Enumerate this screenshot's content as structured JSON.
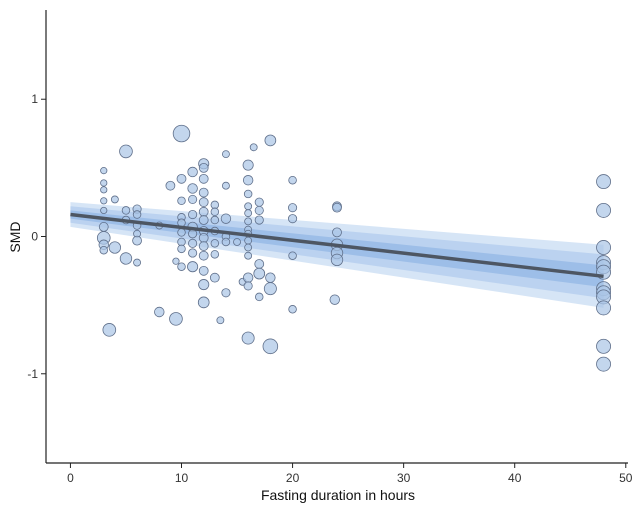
{
  "chart_data": {
    "type": "scatter",
    "xlabel": "Fasting duration in hours",
    "ylabel": "SMD",
    "xlim": [
      -2.2,
      50.2
    ],
    "ylim": [
      -1.65,
      1.65
    ],
    "x_ticks": [
      0,
      10,
      20,
      30,
      40,
      50
    ],
    "y_ticks": [
      -1,
      0,
      1
    ],
    "x_tick_labels": [
      "0",
      "10",
      "20",
      "30",
      "40",
      "50"
    ],
    "y_tick_labels": [
      "-1",
      "0",
      "1"
    ],
    "grid": false,
    "legend": "none",
    "colors": {
      "point_fill": "#a9c4e6",
      "point_stroke": "#5f6f8a",
      "band_outer": "#cfe0f4",
      "band_mid": "#b6cfee",
      "band_inner": "#98bbe6",
      "line": "#4d5663",
      "axis": "#222222"
    },
    "regression": {
      "x": [
        0,
        48
      ],
      "y": [
        0.16,
        -0.29
      ],
      "bands": [
        {
          "level": "outer",
          "lower": [
            0.07,
            -0.52
          ],
          "upper": [
            0.25,
            -0.06
          ]
        },
        {
          "level": "mid",
          "lower": [
            0.1,
            -0.45
          ],
          "upper": [
            0.22,
            -0.13
          ]
        },
        {
          "level": "inner",
          "lower": [
            0.13,
            -0.37
          ],
          "upper": [
            0.19,
            -0.21
          ]
        }
      ]
    },
    "points": [
      {
        "x": 3,
        "y": 0.48,
        "w": 1
      },
      {
        "x": 3,
        "y": 0.39,
        "w": 1
      },
      {
        "x": 3,
        "y": 0.34,
        "w": 1
      },
      {
        "x": 3,
        "y": 0.26,
        "w": 1
      },
      {
        "x": 3,
        "y": 0.19,
        "w": 1
      },
      {
        "x": 3,
        "y": 0.07,
        "w": 1.4
      },
      {
        "x": 3,
        "y": -0.01,
        "w": 2
      },
      {
        "x": 3,
        "y": -0.06,
        "w": 1.5
      },
      {
        "x": 3,
        "y": -0.1,
        "w": 1.2
      },
      {
        "x": 3.5,
        "y": -0.68,
        "w": 2
      },
      {
        "x": 4,
        "y": -0.08,
        "w": 1.8
      },
      {
        "x": 4,
        "y": 0.27,
        "w": 1.1
      },
      {
        "x": 5,
        "y": 0.62,
        "w": 2
      },
      {
        "x": 5,
        "y": 0.19,
        "w": 1.2
      },
      {
        "x": 5,
        "y": 0.12,
        "w": 1.2
      },
      {
        "x": 5,
        "y": -0.16,
        "w": 1.8
      },
      {
        "x": 6,
        "y": 0.2,
        "w": 1.3
      },
      {
        "x": 6,
        "y": 0.16,
        "w": 1.2
      },
      {
        "x": 6,
        "y": 0.08,
        "w": 1.2
      },
      {
        "x": 6,
        "y": 0.02,
        "w": 1.1
      },
      {
        "x": 6,
        "y": -0.03,
        "w": 1.4
      },
      {
        "x": 6,
        "y": -0.19,
        "w": 1.1
      },
      {
        "x": 8,
        "y": -0.55,
        "w": 1.5
      },
      {
        "x": 8,
        "y": 0.08,
        "w": 1.1
      },
      {
        "x": 9,
        "y": 0.37,
        "w": 1.4
      },
      {
        "x": 9.5,
        "y": -0.6,
        "w": 2
      },
      {
        "x": 9.5,
        "y": -0.18,
        "w": 1
      },
      {
        "x": 10,
        "y": 0.75,
        "w": 2.6
      },
      {
        "x": 10,
        "y": 0.42,
        "w": 1.4
      },
      {
        "x": 10,
        "y": 0.26,
        "w": 1.2
      },
      {
        "x": 10,
        "y": 0.14,
        "w": 1.2
      },
      {
        "x": 10,
        "y": 0.1,
        "w": 1.2
      },
      {
        "x": 10,
        "y": 0.03,
        "w": 1.2
      },
      {
        "x": 10,
        "y": -0.04,
        "w": 1.2
      },
      {
        "x": 10,
        "y": -0.09,
        "w": 1.2
      },
      {
        "x": 10,
        "y": -0.22,
        "w": 1.2
      },
      {
        "x": 11,
        "y": 0.47,
        "w": 1.5
      },
      {
        "x": 11,
        "y": 0.35,
        "w": 1.5
      },
      {
        "x": 11,
        "y": 0.27,
        "w": 1.3
      },
      {
        "x": 11,
        "y": 0.16,
        "w": 1.3
      },
      {
        "x": 11,
        "y": 0.07,
        "w": 1.5
      },
      {
        "x": 11,
        "y": 0.02,
        "w": 1.3
      },
      {
        "x": 11,
        "y": -0.05,
        "w": 1.3
      },
      {
        "x": 11,
        "y": -0.12,
        "w": 1.3
      },
      {
        "x": 11,
        "y": -0.22,
        "w": 1.6
      },
      {
        "x": 12,
        "y": 0.53,
        "w": 1.6
      },
      {
        "x": 12,
        "y": 0.5,
        "w": 1.4
      },
      {
        "x": 12,
        "y": 0.42,
        "w": 1.4
      },
      {
        "x": 12,
        "y": 0.32,
        "w": 1.4
      },
      {
        "x": 12,
        "y": 0.25,
        "w": 1.4
      },
      {
        "x": 12,
        "y": 0.18,
        "w": 1.4
      },
      {
        "x": 12,
        "y": 0.12,
        "w": 1.4
      },
      {
        "x": 12,
        "y": 0.04,
        "w": 1.4
      },
      {
        "x": 12,
        "y": -0.01,
        "w": 1.4
      },
      {
        "x": 12,
        "y": -0.07,
        "w": 1.4
      },
      {
        "x": 12,
        "y": -0.14,
        "w": 1.4
      },
      {
        "x": 12,
        "y": -0.25,
        "w": 1.4
      },
      {
        "x": 12,
        "y": -0.35,
        "w": 1.6
      },
      {
        "x": 12,
        "y": -0.48,
        "w": 1.7
      },
      {
        "x": 13,
        "y": 0.23,
        "w": 1.2
      },
      {
        "x": 13,
        "y": 0.18,
        "w": 1.2
      },
      {
        "x": 13,
        "y": 0.12,
        "w": 1.2
      },
      {
        "x": 13,
        "y": 0.04,
        "w": 1.2
      },
      {
        "x": 13,
        "y": -0.05,
        "w": 1.2
      },
      {
        "x": 13,
        "y": -0.13,
        "w": 1.2
      },
      {
        "x": 13,
        "y": -0.3,
        "w": 1.4
      },
      {
        "x": 13.5,
        "y": -0.61,
        "w": 1.1
      },
      {
        "x": 14,
        "y": 0.6,
        "w": 1.1
      },
      {
        "x": 14,
        "y": 0.37,
        "w": 1.1
      },
      {
        "x": 14,
        "y": 0.13,
        "w": 1.5
      },
      {
        "x": 14,
        "y": 0.0,
        "w": 1.2
      },
      {
        "x": 14,
        "y": -0.04,
        "w": 1.2
      },
      {
        "x": 14,
        "y": -0.41,
        "w": 1.3
      },
      {
        "x": 15,
        "y": -0.04,
        "w": 1.1
      },
      {
        "x": 15.5,
        "y": -0.33,
        "w": 1.1
      },
      {
        "x": 16,
        "y": 0.52,
        "w": 1.6
      },
      {
        "x": 16,
        "y": 0.41,
        "w": 1.5
      },
      {
        "x": 16,
        "y": 0.31,
        "w": 1.2
      },
      {
        "x": 16,
        "y": 0.22,
        "w": 1.1
      },
      {
        "x": 16,
        "y": 0.17,
        "w": 1.1
      },
      {
        "x": 16,
        "y": 0.11,
        "w": 1.1
      },
      {
        "x": 16,
        "y": 0.05,
        "w": 1.1
      },
      {
        "x": 16,
        "y": 0.02,
        "w": 1.1
      },
      {
        "x": 16,
        "y": -0.03,
        "w": 1.1
      },
      {
        "x": 16,
        "y": -0.08,
        "w": 1.1
      },
      {
        "x": 16,
        "y": -0.14,
        "w": 1.1
      },
      {
        "x": 16,
        "y": -0.3,
        "w": 1.5
      },
      {
        "x": 16,
        "y": -0.36,
        "w": 1.3
      },
      {
        "x": 16,
        "y": -0.74,
        "w": 1.9
      },
      {
        "x": 16.5,
        "y": 0.65,
        "w": 1.1
      },
      {
        "x": 17,
        "y": 0.25,
        "w": 1.3
      },
      {
        "x": 17,
        "y": 0.19,
        "w": 1.3
      },
      {
        "x": 17,
        "y": 0.12,
        "w": 1.3
      },
      {
        "x": 17,
        "y": -0.2,
        "w": 1.4
      },
      {
        "x": 17,
        "y": -0.27,
        "w": 1.7
      },
      {
        "x": 17,
        "y": -0.44,
        "w": 1.2
      },
      {
        "x": 18,
        "y": 0.7,
        "w": 1.7
      },
      {
        "x": 18,
        "y": -0.3,
        "w": 1.5
      },
      {
        "x": 18,
        "y": -0.38,
        "w": 1.9
      },
      {
        "x": 18,
        "y": -0.8,
        "w": 2.3
      },
      {
        "x": 20,
        "y": 0.41,
        "w": 1.2
      },
      {
        "x": 20,
        "y": 0.21,
        "w": 1.3
      },
      {
        "x": 20,
        "y": 0.13,
        "w": 1.3
      },
      {
        "x": 20,
        "y": -0.14,
        "w": 1.2
      },
      {
        "x": 20,
        "y": -0.53,
        "w": 1.2
      },
      {
        "x": 24,
        "y": 0.22,
        "w": 1.4
      },
      {
        "x": 24,
        "y": 0.21,
        "w": 1.4
      },
      {
        "x": 24,
        "y": 0.03,
        "w": 1.4
      },
      {
        "x": 24,
        "y": -0.06,
        "w": 1.8
      },
      {
        "x": 24,
        "y": -0.12,
        "w": 1.8
      },
      {
        "x": 24,
        "y": -0.17,
        "w": 1.8
      },
      {
        "x": 23.8,
        "y": -0.46,
        "w": 1.5
      },
      {
        "x": 48,
        "y": 0.4,
        "w": 2.2
      },
      {
        "x": 48,
        "y": 0.19,
        "w": 2.2
      },
      {
        "x": 48,
        "y": -0.08,
        "w": 2.2
      },
      {
        "x": 48,
        "y": -0.19,
        "w": 2.2
      },
      {
        "x": 48,
        "y": -0.22,
        "w": 2.2
      },
      {
        "x": 48,
        "y": -0.26,
        "w": 2.2
      },
      {
        "x": 48,
        "y": -0.38,
        "w": 2.2
      },
      {
        "x": 48,
        "y": -0.41,
        "w": 2.2
      },
      {
        "x": 48,
        "y": -0.44,
        "w": 2.2
      },
      {
        "x": 48,
        "y": -0.52,
        "w": 2.2
      },
      {
        "x": 48,
        "y": -0.8,
        "w": 2.2
      },
      {
        "x": 48,
        "y": -0.93,
        "w": 2.2
      }
    ]
  }
}
